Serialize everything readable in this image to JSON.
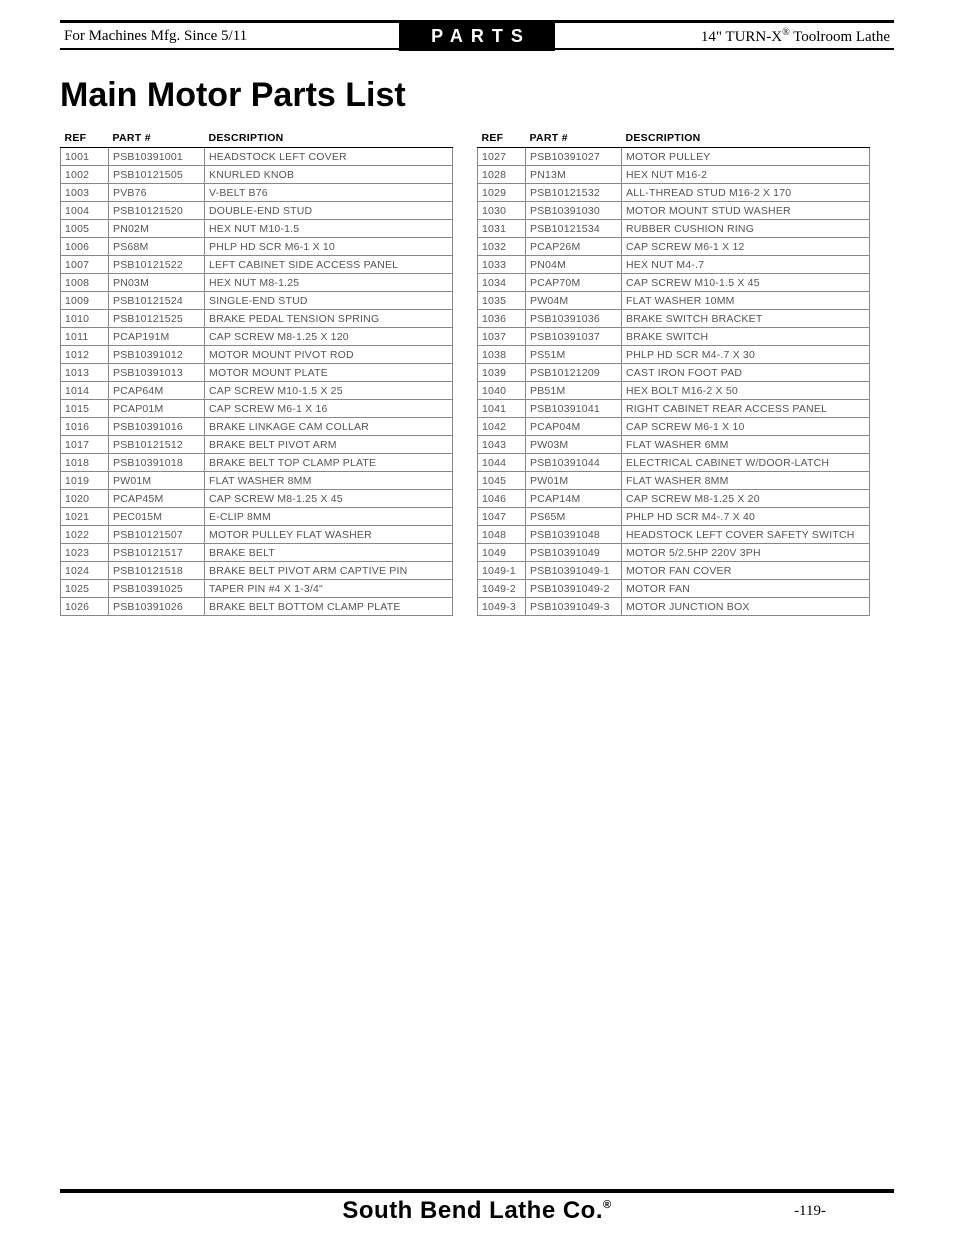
{
  "header": {
    "left": "For Machines Mfg. Since 5/11",
    "center": "PARTS",
    "right_prefix": "14\" TURN-X",
    "right_suffix": " Toolroom Lathe"
  },
  "title": "Main Motor Parts List",
  "columns": {
    "ref": "REF",
    "part": "PART #",
    "desc": "DESCRIPTION"
  },
  "left_table": [
    {
      "ref": "1001",
      "part": "PSB10391001",
      "desc": "HEADSTOCK LEFT COVER"
    },
    {
      "ref": "1002",
      "part": "PSB10121505",
      "desc": "KNURLED KNOB"
    },
    {
      "ref": "1003",
      "part": "PVB76",
      "desc": "V-BELT B76"
    },
    {
      "ref": "1004",
      "part": "PSB10121520",
      "desc": "DOUBLE-END STUD"
    },
    {
      "ref": "1005",
      "part": "PN02M",
      "desc": "HEX NUT M10-1.5"
    },
    {
      "ref": "1006",
      "part": "PS68M",
      "desc": "PHLP HD SCR M6-1 X 10"
    },
    {
      "ref": "1007",
      "part": "PSB10121522",
      "desc": "LEFT CABINET SIDE ACCESS PANEL"
    },
    {
      "ref": "1008",
      "part": "PN03M",
      "desc": "HEX NUT M8-1.25"
    },
    {
      "ref": "1009",
      "part": "PSB10121524",
      "desc": "SINGLE-END STUD"
    },
    {
      "ref": "1010",
      "part": "PSB10121525",
      "desc": "BRAKE PEDAL TENSION SPRING"
    },
    {
      "ref": "1011",
      "part": "PCAP191M",
      "desc": "CAP SCREW M8-1.25 X 120"
    },
    {
      "ref": "1012",
      "part": "PSB10391012",
      "desc": "MOTOR MOUNT PIVOT ROD"
    },
    {
      "ref": "1013",
      "part": "PSB10391013",
      "desc": "MOTOR MOUNT PLATE"
    },
    {
      "ref": "1014",
      "part": "PCAP64M",
      "desc": "CAP SCREW M10-1.5 X 25"
    },
    {
      "ref": "1015",
      "part": "PCAP01M",
      "desc": "CAP SCREW M6-1 X 16"
    },
    {
      "ref": "1016",
      "part": "PSB10391016",
      "desc": "BRAKE LINKAGE CAM COLLAR"
    },
    {
      "ref": "1017",
      "part": "PSB10121512",
      "desc": "BRAKE BELT PIVOT ARM"
    },
    {
      "ref": "1018",
      "part": "PSB10391018",
      "desc": "BRAKE BELT TOP CLAMP PLATE"
    },
    {
      "ref": "1019",
      "part": "PW01M",
      "desc": "FLAT WASHER 8MM"
    },
    {
      "ref": "1020",
      "part": "PCAP45M",
      "desc": "CAP SCREW M8-1.25 X 45"
    },
    {
      "ref": "1021",
      "part": "PEC015M",
      "desc": "E-CLIP 8MM"
    },
    {
      "ref": "1022",
      "part": "PSB10121507",
      "desc": "MOTOR PULLEY FLAT WASHER"
    },
    {
      "ref": "1023",
      "part": "PSB10121517",
      "desc": "BRAKE BELT"
    },
    {
      "ref": "1024",
      "part": "PSB10121518",
      "desc": "BRAKE BELT PIVOT ARM CAPTIVE PIN"
    },
    {
      "ref": "1025",
      "part": "PSB10391025",
      "desc": "TAPER PIN #4 X 1-3/4\""
    },
    {
      "ref": "1026",
      "part": "PSB10391026",
      "desc": "BRAKE BELT BOTTOM CLAMP PLATE"
    }
  ],
  "right_table": [
    {
      "ref": "1027",
      "part": "PSB10391027",
      "desc": "MOTOR PULLEY"
    },
    {
      "ref": "1028",
      "part": "PN13M",
      "desc": "HEX NUT M16-2"
    },
    {
      "ref": "1029",
      "part": "PSB10121532",
      "desc": "ALL-THREAD STUD M16-2 X 170"
    },
    {
      "ref": "1030",
      "part": "PSB10391030",
      "desc": "MOTOR MOUNT STUD WASHER"
    },
    {
      "ref": "1031",
      "part": "PSB10121534",
      "desc": "RUBBER CUSHION RING"
    },
    {
      "ref": "1032",
      "part": "PCAP26M",
      "desc": "CAP SCREW M6-1 X 12"
    },
    {
      "ref": "1033",
      "part": "PN04M",
      "desc": "HEX NUT M4-.7"
    },
    {
      "ref": "1034",
      "part": "PCAP70M",
      "desc": "CAP SCREW M10-1.5 X 45"
    },
    {
      "ref": "1035",
      "part": "PW04M",
      "desc": "FLAT WASHER 10MM"
    },
    {
      "ref": "1036",
      "part": "PSB10391036",
      "desc": "BRAKE SWITCH BRACKET"
    },
    {
      "ref": "1037",
      "part": "PSB10391037",
      "desc": "BRAKE SWITCH"
    },
    {
      "ref": "1038",
      "part": "PS51M",
      "desc": "PHLP HD SCR M4-.7 X 30"
    },
    {
      "ref": "1039",
      "part": "PSB10121209",
      "desc": "CAST IRON FOOT PAD"
    },
    {
      "ref": "1040",
      "part": "PB51M",
      "desc": "HEX BOLT M16-2 X 50"
    },
    {
      "ref": "1041",
      "part": "PSB10391041",
      "desc": "RIGHT CABINET REAR ACCESS PANEL"
    },
    {
      "ref": "1042",
      "part": "PCAP04M",
      "desc": "CAP SCREW M6-1 X 10"
    },
    {
      "ref": "1043",
      "part": "PW03M",
      "desc": "FLAT WASHER 6MM"
    },
    {
      "ref": "1044",
      "part": "PSB10391044",
      "desc": "ELECTRICAL CABINET W/DOOR-LATCH"
    },
    {
      "ref": "1045",
      "part": "PW01M",
      "desc": "FLAT WASHER 8MM"
    },
    {
      "ref": "1046",
      "part": "PCAP14M",
      "desc": "CAP SCREW M8-1.25 X 20"
    },
    {
      "ref": "1047",
      "part": "PS65M",
      "desc": "PHLP HD SCR M4-.7 X 40"
    },
    {
      "ref": "1048",
      "part": "PSB10391048",
      "desc": "HEADSTOCK LEFT COVER SAFETY SWITCH"
    },
    {
      "ref": "1049",
      "part": "PSB10391049",
      "desc": "MOTOR 5/2.5HP 220V 3PH"
    },
    {
      "ref": "1049-1",
      "part": "PSB10391049-1",
      "desc": "MOTOR FAN COVER"
    },
    {
      "ref": "1049-2",
      "part": "PSB10391049-2",
      "desc": "MOTOR FAN"
    },
    {
      "ref": "1049-3",
      "part": "PSB10391049-3",
      "desc": "MOTOR JUNCTION BOX"
    }
  ],
  "footer": {
    "company": "South Bend Lathe Co.",
    "page": "-119-"
  }
}
